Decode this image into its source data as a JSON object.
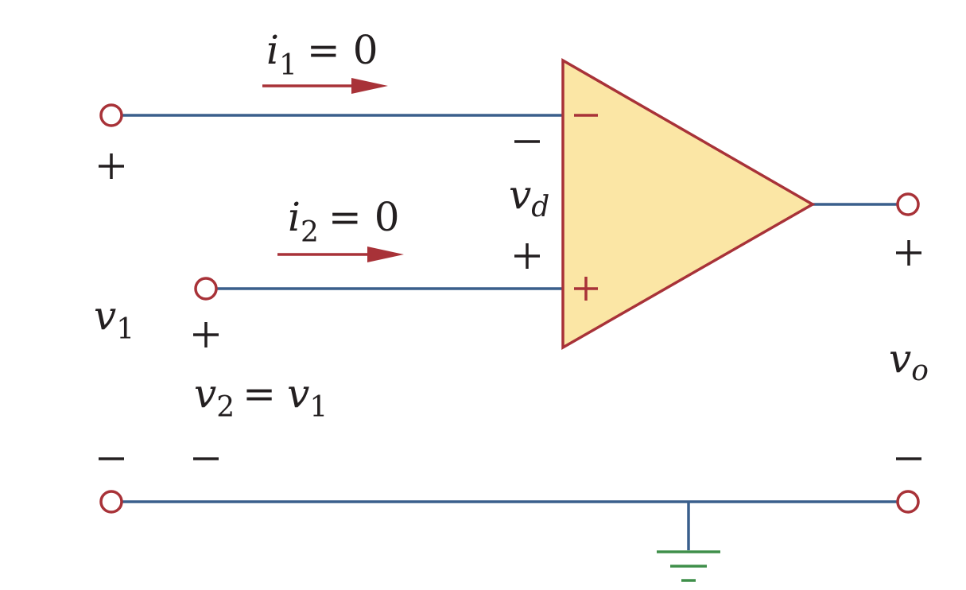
{
  "colors": {
    "wire": "#3a5f8c",
    "accent": "#a83238",
    "opamp_fill": "#fbe6a5",
    "ground": "#3f8f4a",
    "text": "#231f20"
  },
  "labels": {
    "i1": {
      "var": "i",
      "sub": "1",
      "eq": "= 0"
    },
    "i2": {
      "var": "i",
      "sub": "2",
      "eq": "= 0"
    },
    "vd": {
      "var": "v",
      "sub": "d"
    },
    "v1": {
      "var": "v",
      "sub": "1"
    },
    "v2": {
      "var": "v",
      "sub": "2",
      "eq": "=",
      "rhs_var": "v",
      "rhs_sub": "1"
    },
    "vo": {
      "var": "v",
      "sub": "o"
    }
  }
}
